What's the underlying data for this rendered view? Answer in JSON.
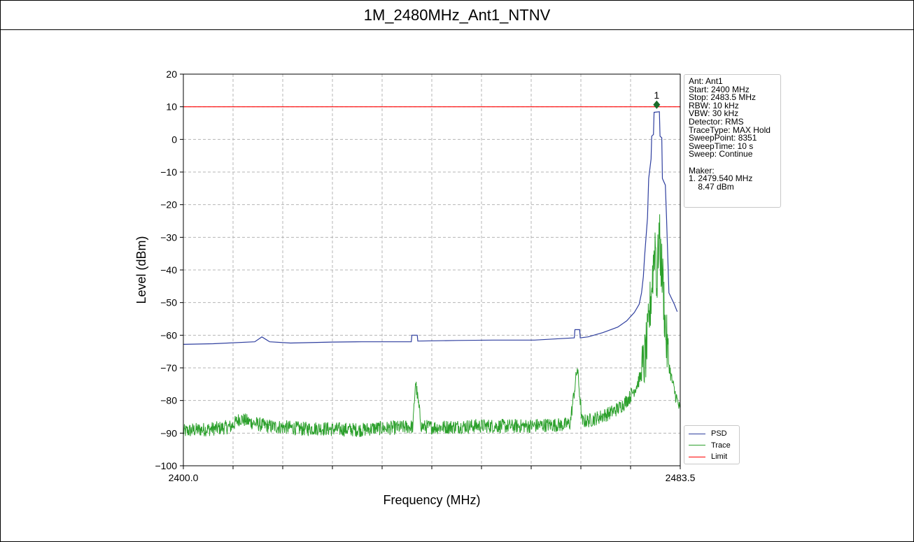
{
  "title": "1M_2480MHz_Ant1_NTNV",
  "chart_data": {
    "type": "line",
    "xlabel": "Frequency (MHz)",
    "ylabel": "Level (dBm)",
    "xlim": [
      2400.0,
      2483.5
    ],
    "ylim": [
      -100,
      20
    ],
    "x_tick_labels": [
      "2400.0",
      "2483.5"
    ],
    "y_ticks": [
      20,
      10,
      0,
      -10,
      -20,
      -30,
      -40,
      -50,
      -60,
      -70,
      -80,
      -90,
      -100
    ],
    "y_tick_labels": [
      "20",
      "10",
      "0",
      "−10",
      "−20",
      "−30",
      "−40",
      "−50",
      "−60",
      "−70",
      "−80",
      "−90",
      "−100"
    ],
    "x_grid_step": 8.35,
    "grid": true,
    "legend_placement": "lower-right",
    "colors": {
      "psd": "#2f3f9f",
      "trace": "#2ca02c",
      "limit": "#ff0000",
      "marker": "#1a6b2a"
    },
    "series": [
      {
        "name": "PSD",
        "x": [
          2400.0,
          2405.0,
          2412.0,
          2413.2,
          2414.5,
          2418.0,
          2425.0,
          2430.0,
          2438.3,
          2438.4,
          2439.3,
          2439.4,
          2446.0,
          2452.0,
          2459.0,
          2465.7,
          2465.8,
          2466.6,
          2466.7,
          2468.0,
          2470.5,
          2473.0,
          2474.5,
          2475.8,
          2476.6,
          2477.0,
          2477.3,
          2477.5,
          2478.0,
          2478.2,
          2478.6,
          2478.7,
          2479.0,
          2479.1,
          2480.0,
          2480.1,
          2480.4,
          2480.5,
          2481.0,
          2481.2,
          2481.6,
          2482.5,
          2483.0
        ],
        "y": [
          -62.8,
          -62.6,
          -62.0,
          -60.5,
          -62.0,
          -62.4,
          -62.1,
          -62.0,
          -62.0,
          -60.0,
          -60.0,
          -61.8,
          -61.6,
          -61.5,
          -61.5,
          -60.8,
          -58.3,
          -58.3,
          -60.8,
          -60.5,
          -59.2,
          -57.5,
          -55.6,
          -53.0,
          -50.5,
          -47.0,
          -42.0,
          -36.0,
          -24.0,
          -12.0,
          -6.0,
          1.0,
          1.5,
          8.3,
          8.47,
          1.0,
          0.5,
          -12.0,
          -14.0,
          -24.0,
          -47.0,
          -50.5,
          -52.8
        ]
      },
      {
        "name": "Trace",
        "x": [
          2400.0,
          2402.0,
          2404.0,
          2406.0,
          2408.0,
          2409.5,
          2411.0,
          2413.0,
          2415.0,
          2418.0,
          2420.0,
          2423.0,
          2425.0,
          2428.0,
          2430.0,
          2432.0,
          2434.0,
          2436.0,
          2438.6,
          2439.0,
          2440.0,
          2443.0,
          2446.0,
          2449.0,
          2452.0,
          2455.0,
          2458.0,
          2461.0,
          2464.0,
          2465.0,
          2466.2,
          2467.0,
          2468.5,
          2470.0,
          2471.5,
          2473.0,
          2474.0,
          2475.0,
          2476.0,
          2477.0,
          2477.5,
          2478.0,
          2478.5,
          2479.0,
          2479.3,
          2479.6,
          2479.9,
          2480.2,
          2480.6,
          2481.0,
          2481.5,
          2482.0,
          2482.5,
          2483.0,
          2483.5
        ],
        "y": [
          -89.5,
          -89.0,
          -88.8,
          -88.5,
          -88.0,
          -85.5,
          -86.5,
          -87.5,
          -88.0,
          -88.3,
          -88.7,
          -88.5,
          -88.8,
          -88.9,
          -89.0,
          -88.5,
          -88.5,
          -88.3,
          -88.0,
          -74.0,
          -88.0,
          -88.2,
          -88.0,
          -87.8,
          -87.8,
          -87.9,
          -87.8,
          -87.5,
          -87.5,
          -87.0,
          -70.0,
          -86.5,
          -86.0,
          -85.0,
          -84.0,
          -82.5,
          -81.0,
          -79.0,
          -76.0,
          -72.0,
          -68.0,
          -62.0,
          -50.0,
          -38.0,
          -30.0,
          -46.0,
          -28.0,
          -36.0,
          -44.0,
          -58.0,
          -68.0,
          -73.0,
          -77.0,
          -80.0,
          -83.5
        ]
      },
      {
        "name": "Limit",
        "x": [
          2400.0,
          2483.5
        ],
        "y": [
          10,
          10
        ]
      }
    ],
    "marker": {
      "label": "1",
      "x": 2479.54,
      "y": 8.47
    },
    "info_lines": [
      "Ant: Ant1",
      "Start: 2400 MHz",
      "Stop: 2483.5 MHz",
      "RBW: 10 kHz",
      "VBW: 30 kHz",
      "Detector: RMS",
      "TraceType: MAX Hold",
      "SweepPoint: 8351",
      "SweepTime: 10 s",
      "Sweep: Continue",
      "",
      "Maker:",
      "1. 2479.540 MHz",
      "    8.47 dBm"
    ]
  }
}
